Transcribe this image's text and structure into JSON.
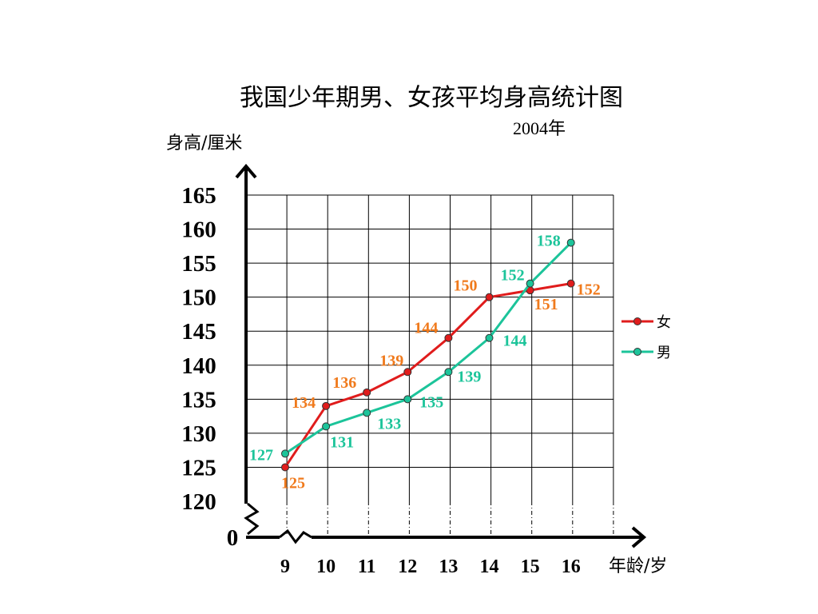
{
  "chart_data": {
    "type": "line",
    "title": "我国少年期男、女孩平均身高统计图",
    "subtitle": "2004年",
    "ylabel": "身高/厘米",
    "xlabel": "年龄/岁",
    "categories": [
      "9",
      "10",
      "11",
      "12",
      "13",
      "14",
      "15",
      "16"
    ],
    "yticks": [
      "0",
      "120",
      "125",
      "130",
      "135",
      "140",
      "145",
      "150",
      "155",
      "160",
      "165"
    ],
    "ylim": [
      120,
      165
    ],
    "grid": true,
    "axis_break": true,
    "legend_position": "right",
    "series": [
      {
        "name": "女",
        "color": "#e01c1c",
        "label_color": "#f07a1c",
        "values": [
          125,
          134,
          136,
          139,
          144,
          150,
          151,
          152
        ],
        "labels": [
          "125",
          "134",
          "136",
          "139",
          "144",
          "150",
          "151",
          "152"
        ]
      },
      {
        "name": "男",
        "color": "#1cc49a",
        "label_color": "#1cc49a",
        "values": [
          127,
          131,
          133,
          135,
          139,
          144,
          152,
          158
        ],
        "labels": [
          "127",
          "131",
          "133",
          "135",
          "139",
          "144",
          "152",
          "158"
        ]
      }
    ]
  }
}
